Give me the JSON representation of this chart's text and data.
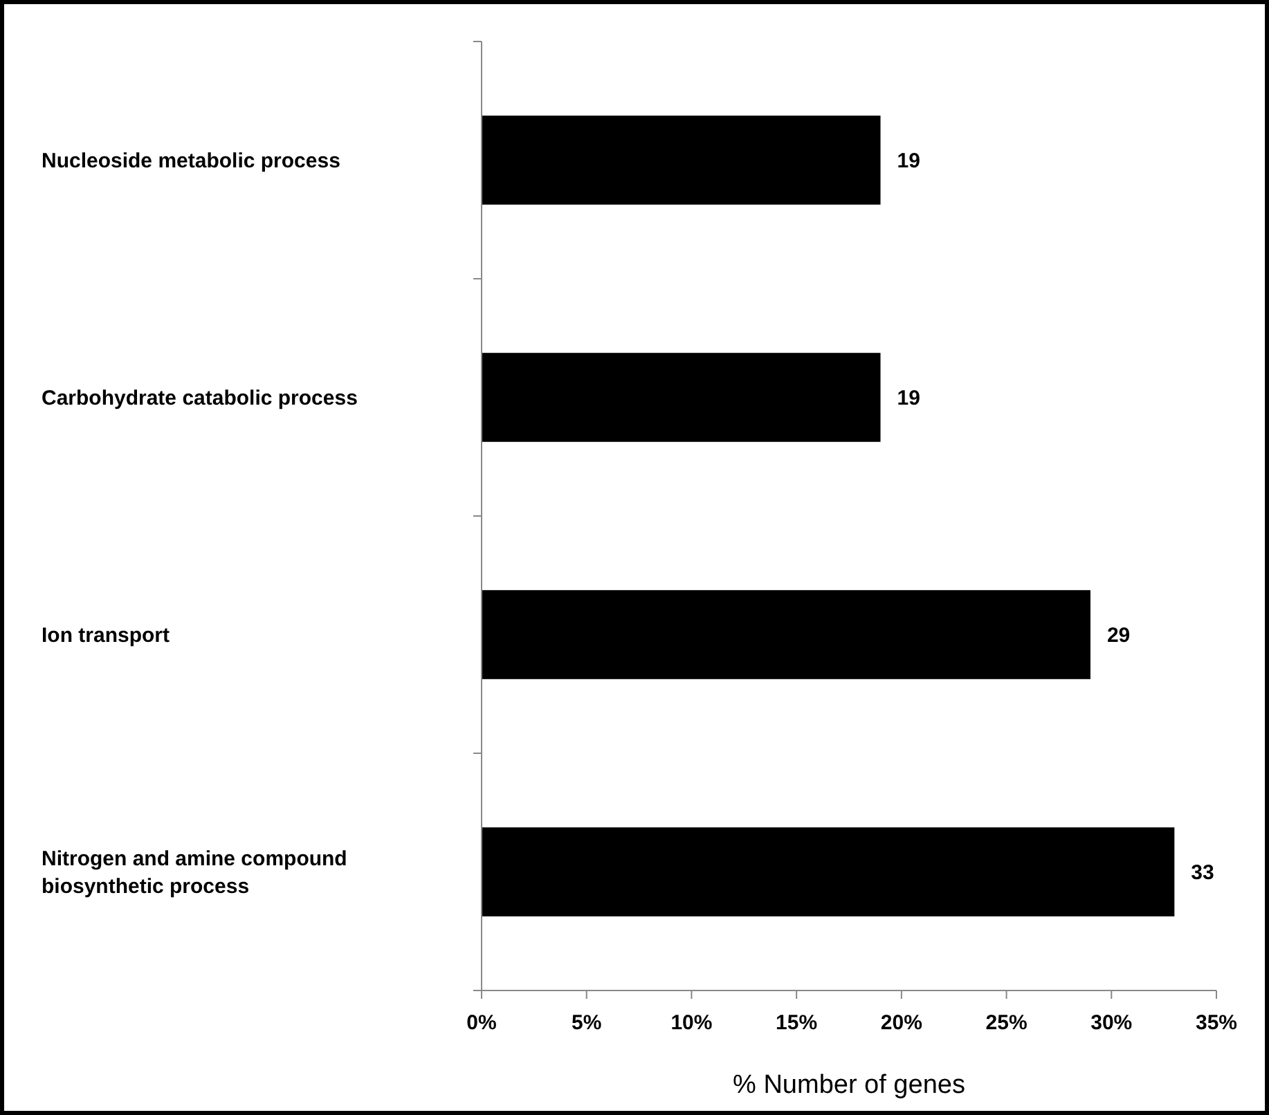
{
  "chart_data": {
    "type": "bar",
    "orientation": "horizontal",
    "xlabel": "% Number of genes",
    "categories": [
      "Nucleoside metabolic process",
      "Carbohydrate catabolic process",
      "Ion transport",
      "Nitrogen and amine compound biosynthetic process"
    ],
    "values": [
      19,
      19,
      29,
      33
    ],
    "color": "#000000",
    "data_labels": true,
    "xlim": [
      0,
      35
    ],
    "xticks": [
      {
        "value": 0,
        "label": "0%"
      },
      {
        "value": 5,
        "label": "5%"
      },
      {
        "value": 10,
        "label": "10%"
      },
      {
        "value": 15,
        "label": "15%"
      },
      {
        "value": 20,
        "label": "20%"
      },
      {
        "value": 25,
        "label": "25%"
      },
      {
        "value": 30,
        "label": "30%"
      },
      {
        "value": 35,
        "label": "35%"
      }
    ],
    "grid": false
  }
}
